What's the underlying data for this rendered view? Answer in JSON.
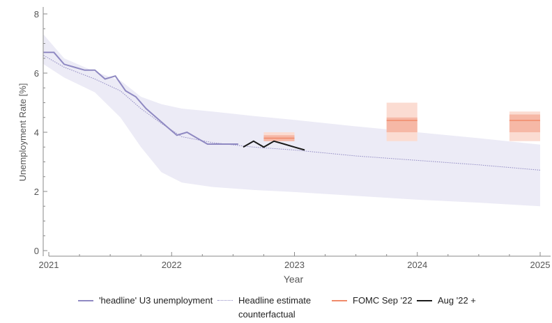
{
  "chart_data": {
    "type": "line",
    "xlabel": "Year",
    "ylabel": "Unemployment Rate [%]",
    "xlim": [
      2021,
      2025
    ],
    "ylim": [
      0,
      8
    ],
    "x_ticks": [
      "2021",
      "2022",
      "2023",
      "2024",
      "2025"
    ],
    "y_ticks": [
      "0",
      "2",
      "4",
      "6",
      "8"
    ],
    "grid": false,
    "legend_position": "bottom",
    "series": [
      {
        "name": "'headline' U3 unemployment",
        "color": "#8f89c2",
        "x": [
          2020.958,
          2021.042,
          2021.125,
          2021.208,
          2021.292,
          2021.375,
          2021.458,
          2021.542,
          2021.625,
          2021.708,
          2021.792,
          2021.875,
          2021.958,
          2022.042,
          2022.125,
          2022.208,
          2022.292,
          2022.375,
          2022.458,
          2022.542
        ],
        "y": [
          6.7,
          6.7,
          6.3,
          6.2,
          6.1,
          6.1,
          5.8,
          5.9,
          5.4,
          5.2,
          4.8,
          4.5,
          4.2,
          3.9,
          4.0,
          3.8,
          3.6,
          3.6,
          3.6,
          3.6
        ]
      },
      {
        "name": "Headline estimate counterfactual",
        "color": "#8f89c2",
        "x": [
          2020.958,
          2021.125,
          2021.375,
          2021.583,
          2021.75,
          2021.917,
          2022.083,
          2022.333,
          2022.667,
          2023.0,
          2023.5,
          2024.0,
          2024.5,
          2025.0
        ],
        "y": [
          6.6,
          6.2,
          5.8,
          5.4,
          4.8,
          4.3,
          3.85,
          3.65,
          3.5,
          3.4,
          3.2,
          3.05,
          2.9,
          2.72
        ],
        "band_lower": [
          6.3,
          5.85,
          5.35,
          4.5,
          3.5,
          2.65,
          2.3,
          2.15,
          2.05,
          1.98,
          1.85,
          1.72,
          1.62,
          1.5
        ],
        "band_upper": [
          7.3,
          6.5,
          6.05,
          5.75,
          5.2,
          4.95,
          4.8,
          4.7,
          4.55,
          4.42,
          4.2,
          4.0,
          3.8,
          3.58
        ]
      },
      {
        "name": "FOMC Sep '22",
        "color": "#f08a6a",
        "projections": [
          {
            "x_start": 2022.75,
            "x_end": 2023.0,
            "median": 3.8,
            "central_low": 3.7,
            "central_high": 3.9,
            "range_low": 3.7,
            "range_high": 4.0
          },
          {
            "x_start": 2023.75,
            "x_end": 2024.0,
            "median": 4.4,
            "central_low": 4.0,
            "central_high": 4.5,
            "range_low": 3.7,
            "range_high": 5.0
          },
          {
            "x_start": 2024.75,
            "x_end": 2025.0,
            "median": 4.4,
            "central_low": 4.0,
            "central_high": 4.6,
            "range_low": 3.7,
            "range_high": 4.7
          }
        ]
      },
      {
        "name": "Aug '22 +",
        "color": "#1a1a1a",
        "x": [
          2022.583,
          2022.667,
          2022.75,
          2022.833,
          2022.917,
          2023.0,
          2023.083
        ],
        "y": [
          3.5,
          3.7,
          3.5,
          3.7,
          3.6,
          3.5,
          3.4
        ]
      }
    ]
  }
}
